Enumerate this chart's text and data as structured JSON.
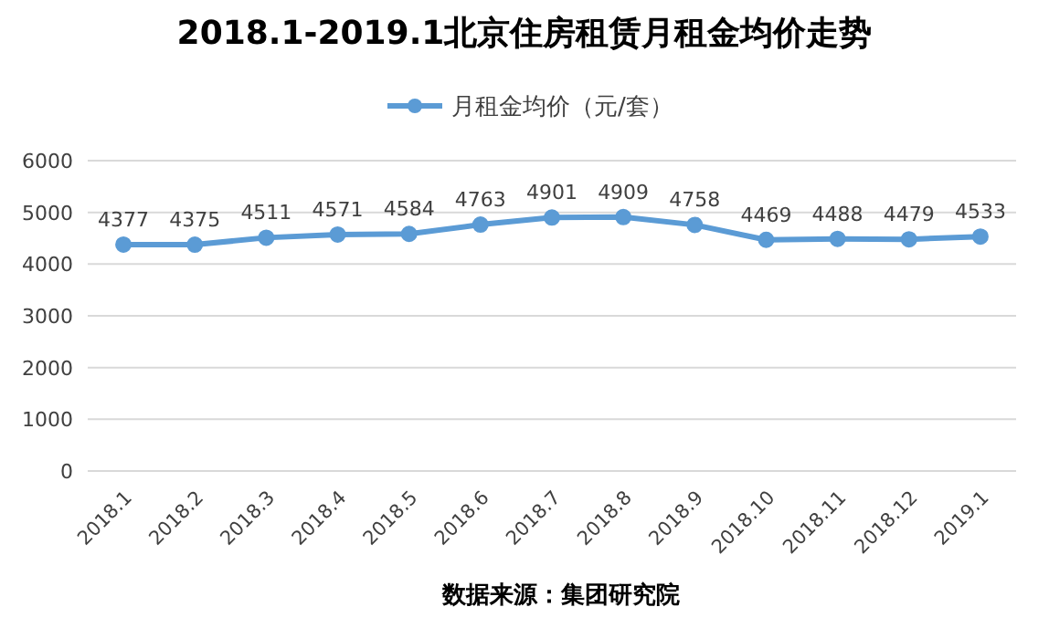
{
  "chart_data": {
    "type": "line",
    "title": "2018.1-2019.1北京住房租赁月租金均价走势",
    "categories": [
      "2018.1",
      "2018.2",
      "2018.3",
      "2018.4",
      "2018.5",
      "2018.6",
      "2018.7",
      "2018.8",
      "2018.9",
      "2018.10",
      "2018.11",
      "2018.12",
      "2019.1"
    ],
    "series": [
      {
        "name": "月租金均价（元/套）",
        "color": "#5b9bd5",
        "values": [
          4377,
          4375,
          4511,
          4571,
          4584,
          4763,
          4901,
          4909,
          4758,
          4469,
          4488,
          4479,
          4533
        ]
      }
    ],
    "ylim": [
      0,
      6000
    ],
    "yticks": [
      0,
      1000,
      2000,
      3000,
      4000,
      5000,
      6000
    ],
    "grid": "y",
    "legend": "top",
    "marker": "circle",
    "line_style": "solid",
    "data_labels": true,
    "annotations": [
      "数据来源：集团研究院"
    ]
  }
}
